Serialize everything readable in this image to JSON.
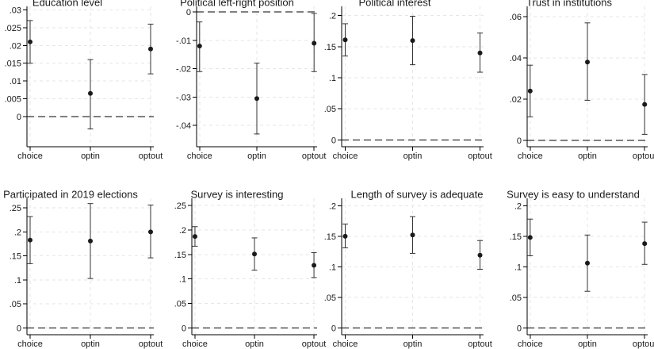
{
  "chart_data": [
    {
      "type": "scatter",
      "title": "Education level",
      "categories": [
        "choice",
        "optin",
        "optout"
      ],
      "estimates": [
        0.021,
        0.0065,
        0.019
      ],
      "ci_low": [
        0.015,
        -0.0035,
        0.012
      ],
      "ci_high": [
        0.027,
        0.016,
        0.026
      ],
      "ylim": [
        -0.0085,
        0.031
      ],
      "yticks": [
        0,
        0.005,
        0.01,
        0.015,
        0.02,
        0.025,
        0.03
      ],
      "ytick_labels": [
        "0",
        ".005",
        ".01",
        ".015",
        ".02",
        ".025",
        ".03"
      ],
      "reference_line": 0,
      "grid": true
    },
    {
      "type": "scatter",
      "title": "Political left-right position",
      "categories": [
        "choice",
        "optin",
        "optout"
      ],
      "estimates": [
        -0.012,
        -0.0305,
        -0.011
      ],
      "ci_low": [
        -0.021,
        -0.043,
        -0.021
      ],
      "ci_high": [
        -0.0035,
        -0.018,
        -0.0005
      ],
      "ylim": [
        -0.0475,
        0.002
      ],
      "yticks": [
        -0.04,
        -0.03,
        -0.02,
        -0.01,
        0
      ],
      "ytick_labels": [
        "-.04",
        "-.03",
        "-.02",
        "-.01",
        "0"
      ],
      "reference_line": 0,
      "grid": true
    },
    {
      "type": "scatter",
      "title": "Political interest",
      "categories": [
        "choice",
        "optin",
        "optout"
      ],
      "estimates": [
        0.161,
        0.16,
        0.14
      ],
      "ci_low": [
        0.135,
        0.121,
        0.109
      ],
      "ci_high": [
        0.187,
        0.199,
        0.172
      ],
      "ylim": [
        -0.011,
        0.215
      ],
      "yticks": [
        0,
        0.05,
        0.1,
        0.15,
        0.2
      ],
      "ytick_labels": [
        "0",
        ".05",
        ".1",
        ".15",
        ".2"
      ],
      "reference_line": 0,
      "grid": true
    },
    {
      "type": "scatter",
      "title": "Trust in institutions",
      "categories": [
        "choice",
        "optin",
        "optout"
      ],
      "estimates": [
        0.024,
        0.038,
        0.0175
      ],
      "ci_low": [
        0.0115,
        0.0195,
        0.003
      ],
      "ci_high": [
        0.0365,
        0.057,
        0.032
      ],
      "ylim": [
        -0.003,
        0.065
      ],
      "yticks": [
        0,
        0.02,
        0.04,
        0.06
      ],
      "ytick_labels": [
        "0",
        ".02",
        ".04",
        ".06"
      ],
      "reference_line": 0,
      "grid": true
    },
    {
      "type": "scatter",
      "title": "Participated in 2019 elections",
      "categories": [
        "choice",
        "optin",
        "optout"
      ],
      "estimates": [
        0.183,
        0.181,
        0.2
      ],
      "ci_low": [
        0.134,
        0.103,
        0.146
      ],
      "ci_high": [
        0.232,
        0.259,
        0.256
      ],
      "ylim": [
        -0.014,
        0.27
      ],
      "yticks": [
        0,
        0.05,
        0.1,
        0.15,
        0.2,
        0.25
      ],
      "ytick_labels": [
        "0",
        ".05",
        ".1",
        ".15",
        ".2",
        ".25"
      ],
      "reference_line": 0,
      "grid": true
    },
    {
      "type": "scatter",
      "title": "Survey is interesting",
      "categories": [
        "choice",
        "optin",
        "optout"
      ],
      "estimates": [
        0.187,
        0.151,
        0.128
      ],
      "ci_low": [
        0.167,
        0.118,
        0.103
      ],
      "ci_high": [
        0.207,
        0.184,
        0.154
      ],
      "ylim": [
        -0.014,
        0.265
      ],
      "yticks": [
        0,
        0.05,
        0.1,
        0.15,
        0.2,
        0.25
      ],
      "ytick_labels": [
        "0",
        ".05",
        ".1",
        ".15",
        ".2",
        ".25"
      ],
      "reference_line": 0,
      "grid": true
    },
    {
      "type": "scatter",
      "title": "Length of survey is adequate",
      "categories": [
        "choice",
        "optin",
        "optout"
      ],
      "estimates": [
        0.15,
        0.152,
        0.119
      ],
      "ci_low": [
        0.131,
        0.122,
        0.096
      ],
      "ci_high": [
        0.17,
        0.182,
        0.143
      ],
      "ylim": [
        -0.011,
        0.212
      ],
      "yticks": [
        0,
        0.05,
        0.1,
        0.15,
        0.2
      ],
      "ytick_labels": [
        "0",
        ".05",
        ".1",
        ".15",
        ".2"
      ],
      "reference_line": 0,
      "grid": true
    },
    {
      "type": "scatter",
      "title": "Survey is easy to understand",
      "categories": [
        "choice",
        "optin",
        "optout"
      ],
      "estimates": [
        0.148,
        0.106,
        0.138
      ],
      "ci_low": [
        0.118,
        0.06,
        0.104
      ],
      "ci_high": [
        0.178,
        0.152,
        0.173
      ],
      "ylim": [
        -0.011,
        0.212
      ],
      "yticks": [
        0,
        0.05,
        0.1,
        0.15,
        0.2
      ],
      "ytick_labels": [
        "0",
        ".05",
        ".1",
        ".15",
        ".2"
      ],
      "reference_line": 0,
      "grid": true
    }
  ]
}
